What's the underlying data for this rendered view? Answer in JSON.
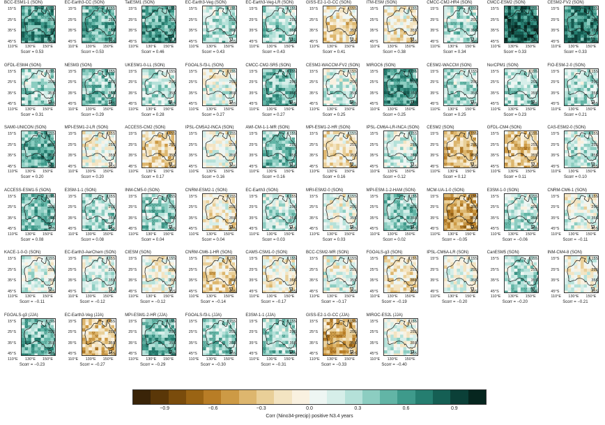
{
  "panels": [
    {
      "title": "BCC-ESM1-1 (SON)",
      "scorr": "Scorr = 0.53",
      "anomaly": 0.6
    },
    {
      "title": "EC-Earth3-CC (SON)",
      "scorr": "Scorr = 0.53",
      "anomaly": 0.5
    },
    {
      "title": "TaiESM1 (SON)",
      "scorr": "Scorr = 0.46",
      "anomaly": 0.55
    },
    {
      "title": "EC-Earth3-Veg (SON)",
      "scorr": "Scorr = 0.43",
      "anomaly": 0.3
    },
    {
      "title": "EC-Earth3-Veg-LR (SON)",
      "scorr": "Scorr = 0.43",
      "anomaly": 0.3
    },
    {
      "title": "GISS-E2-1-G-CC (SON)",
      "scorr": "Scorr = 0.41",
      "anomaly": -0.2
    },
    {
      "title": "ITM-ESM (SON)",
      "scorr": "Scorr = 0.38",
      "anomaly": -0.1
    },
    {
      "title": "CMCC-CM2-HR4 (SON)",
      "scorr": "Scorr = 0.34",
      "anomaly": 0.3
    },
    {
      "title": "CMCC-ESM2 (SON)",
      "scorr": "Scorr = 0.33",
      "anomaly": 0.8
    },
    {
      "title": "CESM2-FV2 (SON)",
      "scorr": "Scorr = 0.33",
      "anomaly": 0.7
    },
    {
      "title": "GFDL-ESM4 (SON)",
      "scorr": "Scorr = 0.31",
      "anomaly": 0.3
    },
    {
      "title": "NESM3 (SON)",
      "scorr": "Scorr = 0.29",
      "anomaly": 0.4
    },
    {
      "title": "UKESM1-0-LL (SON)",
      "scorr": "Scorr = 0.28",
      "anomaly": 0.25
    },
    {
      "title": "FGOALS-f3-L (SON)",
      "scorr": "Scorr = 0.27",
      "anomaly": 0.1
    },
    {
      "title": "CMCC-CM2-SR5 (SON)",
      "scorr": "Scorr = 0.27",
      "anomaly": 0.45
    },
    {
      "title": "CESM2-WACCM-FV2 (SON)",
      "scorr": "Scorr = 0.25",
      "anomaly": 0.2
    },
    {
      "title": "MIROC6 (SON)",
      "scorr": "Scorr = 0.25",
      "anomaly": 0.6
    },
    {
      "title": "CESM2-WACCM (SON)",
      "scorr": "Scorr = 0.25",
      "anomaly": 0.3
    },
    {
      "title": "NorCPM1 (SON)",
      "scorr": "Scorr = 0.23",
      "anomaly": 0.3
    },
    {
      "title": "FIO-ESM-2-0 (SON)",
      "scorr": "Scorr = 0.21",
      "anomaly": 0.3
    },
    {
      "title": "SAM0-UNICON (SON)",
      "scorr": "Scorr = 0.20",
      "anomaly": 0.5
    },
    {
      "title": "MPI-ESM1-2-LR (SON)",
      "scorr": "Scorr = 0.20",
      "anomaly": 0.05
    },
    {
      "title": "ACCESS-CM2 (SON)",
      "scorr": "Scorr = 0.17",
      "anomaly": -0.25
    },
    {
      "title": "IPSL-CM5A2-INCA (SON)",
      "scorr": "Scorr = 0.16",
      "anomaly": 0.05
    },
    {
      "title": "AWI-CM-1-1-MR (SON)",
      "scorr": "Scorr = 0.16",
      "anomaly": 0.4
    },
    {
      "title": "MPI-ESM1-2-HR (SON)",
      "scorr": "Scorr = 0.16",
      "anomaly": -0.15
    },
    {
      "title": "IPSL-CM6A-LR-INCA (SON)",
      "scorr": "Scorr = 0.12",
      "anomaly": 0.2
    },
    {
      "title": "CESM2 (SON)",
      "scorr": "Scorr = 0.12",
      "anomaly": -0.3
    },
    {
      "title": "GFDL-CM4 (SON)",
      "scorr": "Scorr = 0.11",
      "anomaly": -0.3
    },
    {
      "title": "CAS-ESM2-0 (SON)",
      "scorr": "Scorr = 0.10",
      "anomaly": 0.2
    },
    {
      "title": "ACCESS-ESM1-5 (SON)",
      "scorr": "Scorr = 0.08",
      "anomaly": 0.45
    },
    {
      "title": "E3SM-1-1 (SON)",
      "scorr": "Scorr = 0.08",
      "anomaly": 0.3
    },
    {
      "title": "INM-CM5-0 (SON)",
      "scorr": "Scorr = 0.04",
      "anomaly": 0.35
    },
    {
      "title": "CNRM-ESM2-1 (SON)",
      "scorr": "Scorr = 0.04",
      "anomaly": -0.1
    },
    {
      "title": "EC-Earth3 (SON)",
      "scorr": "Scorr = 0.03",
      "anomaly": 0.25
    },
    {
      "title": "MRI-ESM2-0 (SON)",
      "scorr": "Scorr = 0.03",
      "anomaly": 0.1
    },
    {
      "title": "MPI-ESM-1-2-HAM (SON)",
      "scorr": "Scorr = 0.02",
      "anomaly": 0.4
    },
    {
      "title": "MCM-UA-1-0 (SON)",
      "scorr": "Scorr = −0.05",
      "anomaly": -0.45
    },
    {
      "title": "E3SM-1-0 (SON)",
      "scorr": "Scorr = −0.06",
      "anomaly": 0.25
    },
    {
      "title": "CNRM-CM6-1 (SON)",
      "scorr": "Scorr = −0.11",
      "anomaly": 0.1
    },
    {
      "title": "KACE-1-0-G (SON)",
      "scorr": "Scorr = −0.11",
      "anomaly": 0.15
    },
    {
      "title": "EC-Earth3-AerChem (SON)",
      "scorr": "Scorr = −0.12",
      "anomaly": 0.2
    },
    {
      "title": "CIESM (SON)",
      "scorr": "Scorr = −0.12",
      "anomaly": 0.05
    },
    {
      "title": "CNRM-CM6-1-HR (SON)",
      "scorr": "Scorr = −0.14",
      "anomaly": -0.2
    },
    {
      "title": "CAMS-CSM1-0 (SON)",
      "scorr": "Scorr = −0.17",
      "anomaly": -0.1
    },
    {
      "title": "BCC-CSM2-MR (SON)",
      "scorr": "Scorr = −0.17",
      "anomaly": 0.1
    },
    {
      "title": "FGOALS-g3 (SON)",
      "scorr": "Scorr = −0.19",
      "anomaly": -0.15
    },
    {
      "title": "IPSL-CM6A-LR (SON)",
      "scorr": "Scorr = −0.20",
      "anomaly": 0.05
    },
    {
      "title": "CanESM5 (SON)",
      "scorr": "Scorr = −0.20",
      "anomaly": 0.3
    },
    {
      "title": "INM-CM4-8 (SON)",
      "scorr": "Scorr = −0.21",
      "anomaly": 0.05
    },
    {
      "title": "FGOALS-g3 (JJA)",
      "scorr": "Scorr = −0.23",
      "anomaly": 0.45
    },
    {
      "title": "EC-Earth3-Veg (JJA)",
      "scorr": "Scorr = −0.27",
      "anomaly": -0.3
    },
    {
      "title": "MPI-ESM1-2-HR (JJA)",
      "scorr": "Scorr = −0.29",
      "anomaly": 0.5
    },
    {
      "title": "FGOALS-f3-L (JJA)",
      "scorr": "Scorr = −0.30",
      "anomaly": 0.35
    },
    {
      "title": "E3SM-1-1 (JJA)",
      "scorr": "Scorr = −0.31",
      "anomaly": 0.3
    },
    {
      "title": "GISS-E2-1-G-CC (JJA)",
      "scorr": "Scorr = −0.33",
      "anomaly": -0.4
    },
    {
      "title": "MIROC-ES2L (JJA)",
      "scorr": "Scorr = −0.40",
      "anomaly": 0.1
    }
  ],
  "axes": {
    "lat_left": [
      "15°S",
      "25°S",
      "35°S",
      "45°S"
    ],
    "lat_right": [
      "15S",
      "25S",
      "35S",
      "45S"
    ],
    "lon": [
      "110°E",
      "130°E",
      "150°E"
    ]
  },
  "colorbar": {
    "ticks": [
      "−0.9",
      "−0.6",
      "−0.3",
      "0.0",
      "0.3",
      "0.6",
      "0.9"
    ],
    "tick_values": [
      -0.9,
      -0.6,
      -0.3,
      0.0,
      0.3,
      0.6,
      0.9
    ],
    "range": [
      -1.1,
      1.1
    ],
    "label": "Corr (Nino34-precip) positive N3.4 years",
    "colors": [
      "#3a2408",
      "#5a3708",
      "#7a4c0c",
      "#9a6414",
      "#b87d26",
      "#cd9a45",
      "#ddb66e",
      "#e9cf98",
      "#f3e4c2",
      "#f9f1e0",
      "#eef6f3",
      "#d6eee9",
      "#b5e1d9",
      "#8ccdc1",
      "#62b5a6",
      "#3e9a8b",
      "#257e70",
      "#155f54",
      "#0b4038",
      "#06261f"
    ]
  }
}
